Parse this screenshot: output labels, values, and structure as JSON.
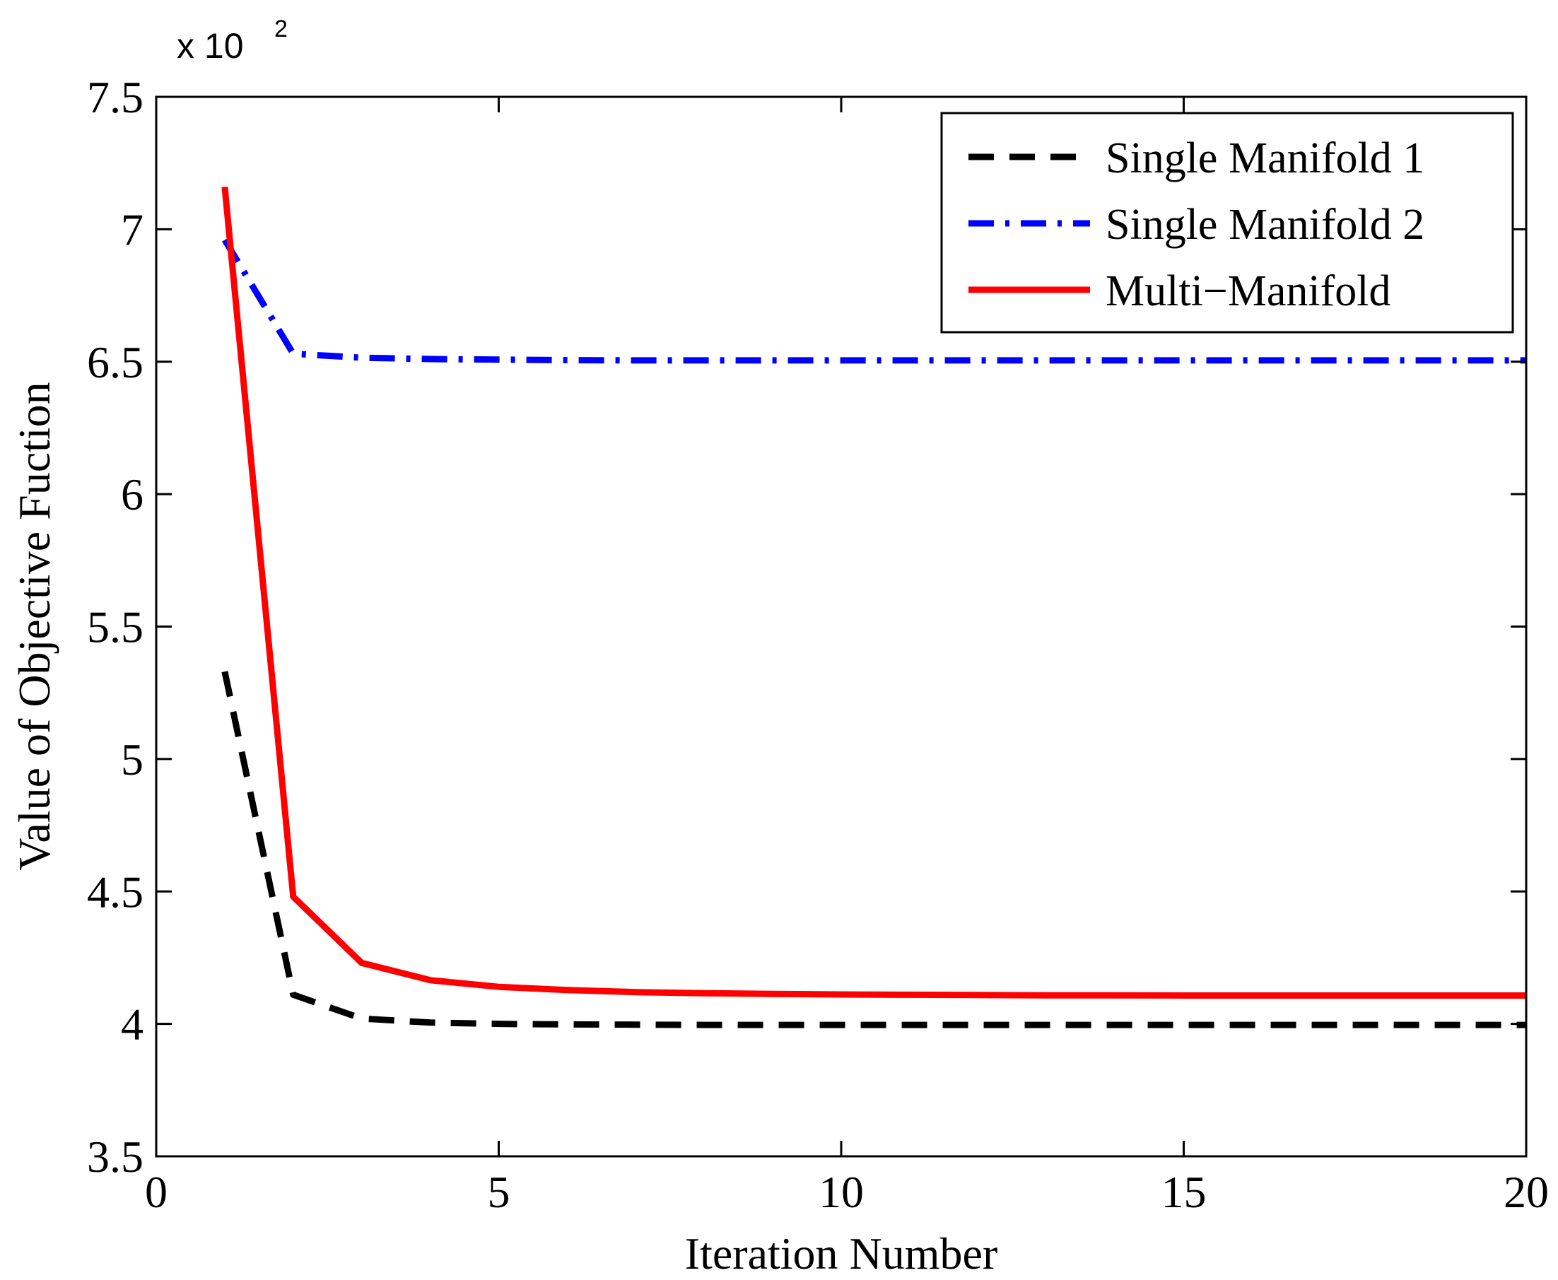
{
  "chart_data": {
    "type": "line",
    "title": "",
    "xlabel": "Iteration Number",
    "ylabel": "Value of Objective Fuction",
    "xlim": [
      0,
      20
    ],
    "ylim": [
      3.5,
      7.5
    ],
    "xticks": [
      0,
      5,
      10,
      15,
      20
    ],
    "yticks": [
      3.5,
      4,
      4.5,
      5,
      5.5,
      6,
      6.5,
      7,
      7.5
    ],
    "xtick_labels": [
      "0",
      "5",
      "10",
      "15",
      "20"
    ],
    "ytick_labels": [
      "3.5",
      "4",
      "4.5",
      "5",
      "5.5",
      "6",
      "6.5",
      "7",
      "7.5"
    ],
    "y_exponent": {
      "prefix": "x  10",
      "power": "2"
    },
    "grid": false,
    "legend_position": "top-right",
    "x": [
      1,
      2,
      3,
      4,
      5,
      6,
      7,
      8,
      9,
      10,
      11,
      12,
      13,
      14,
      15,
      16,
      17,
      18,
      19,
      20
    ],
    "series": [
      {
        "name": "Single Manifold 1",
        "color": "#000000",
        "style": "dashed",
        "values": [
          5.33,
          4.11,
          4.02,
          4.005,
          4.0,
          3.998,
          3.997,
          3.996,
          3.996,
          3.996,
          3.996,
          3.996,
          3.996,
          3.996,
          3.996,
          3.996,
          3.996,
          3.996,
          3.996,
          3.996
        ]
      },
      {
        "name": "Single Manifold 2",
        "color": "#0000ff",
        "style": "dashdot",
        "values": [
          6.96,
          6.53,
          6.515,
          6.51,
          6.508,
          6.506,
          6.505,
          6.505,
          6.505,
          6.505,
          6.505,
          6.505,
          6.505,
          6.505,
          6.505,
          6.505,
          6.505,
          6.505,
          6.505,
          6.505
        ]
      },
      {
        "name": "Multi−Manifold",
        "color": "#ff0000",
        "style": "solid",
        "values": [
          7.16,
          4.48,
          4.23,
          4.165,
          4.14,
          4.128,
          4.12,
          4.116,
          4.113,
          4.111,
          4.11,
          4.109,
          4.108,
          4.108,
          4.107,
          4.107,
          4.107,
          4.107,
          4.107,
          4.107
        ]
      }
    ]
  }
}
